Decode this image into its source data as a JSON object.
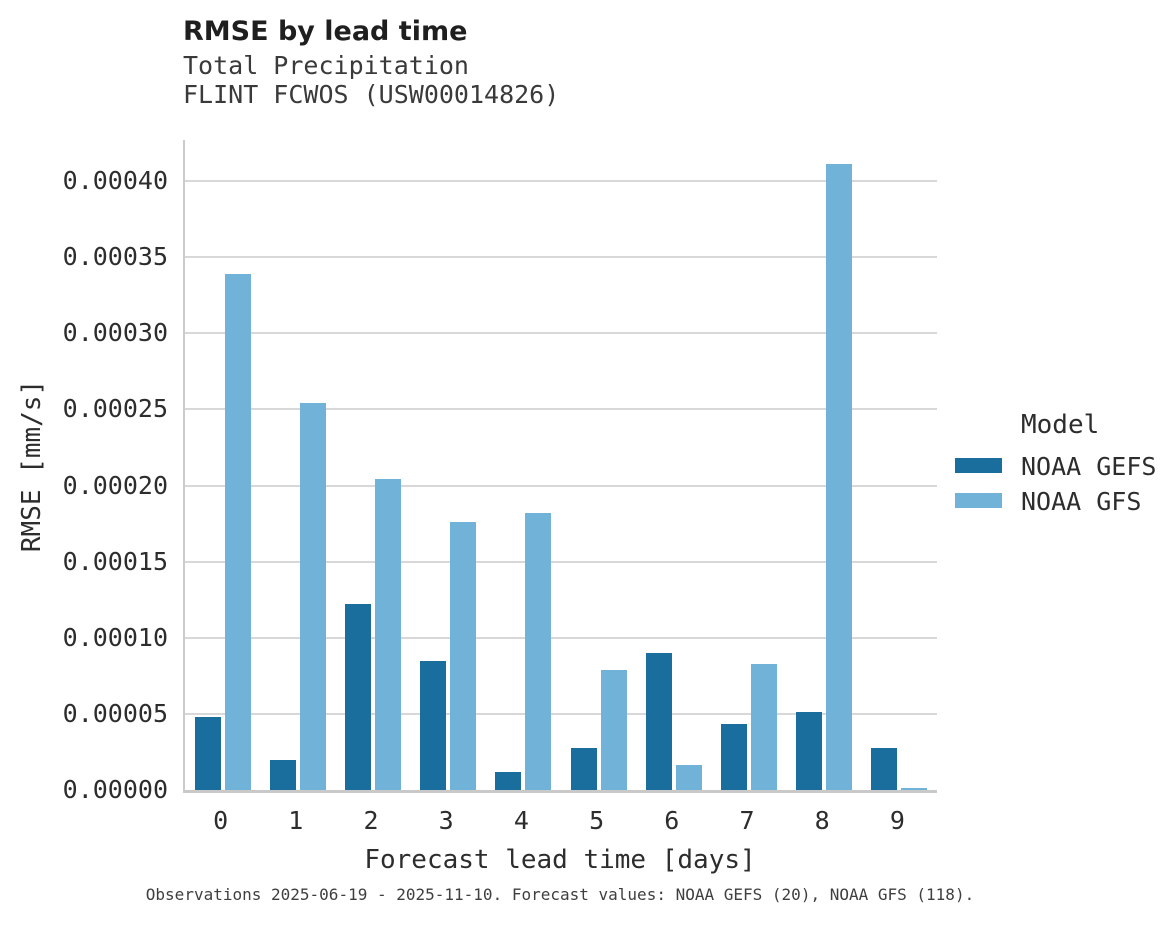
{
  "chart_data": {
    "type": "bar",
    "title": "RMSE by lead time",
    "subtitle_line1": "Total Precipitation",
    "subtitle_line2": "FLINT FCWOS (USW00014826)",
    "xlabel": "Forecast lead time [days]",
    "ylabel": "RMSE [mm/s]",
    "categories": [
      "0",
      "1",
      "2",
      "3",
      "4",
      "5",
      "6",
      "7",
      "8",
      "9"
    ],
    "series": [
      {
        "name": "NOAA GEFS",
        "color": "#1A6E9E",
        "values": [
          4.8e-05,
          1.95e-05,
          0.000122,
          8.5e-05,
          1.2e-05,
          2.75e-05,
          9e-05,
          4.35e-05,
          5.15e-05,
          2.75e-05
        ]
      },
      {
        "name": "NOAA GFS",
        "color": "#71B2D8",
        "values": [
          0.000339,
          0.000254,
          0.000204,
          0.000176,
          0.000182,
          7.9e-05,
          1.65e-05,
          8.3e-05,
          0.000411,
          1.5e-06
        ]
      }
    ],
    "ylim": [
      0,
      0.000427
    ],
    "yticks": [
      0,
      5e-05,
      0.0001,
      0.00015,
      0.0002,
      0.00025,
      0.0003,
      0.00035,
      0.0004
    ],
    "ytick_labels": [
      "0.00000",
      "0.00005",
      "0.00010",
      "0.00015",
      "0.00020",
      "0.00025",
      "0.00030",
      "0.00035",
      "0.00040"
    ],
    "grid": "horizontal",
    "legend": {
      "title": "Model",
      "position": "right"
    },
    "caption": "Observations 2025-06-19 - 2025-11-10. Forecast values: NOAA GEFS (20), NOAA GFS (118)."
  },
  "colors": {
    "gefs_bar": "#1A6E9E",
    "gfs_bar": "#71B2D8",
    "gridline": "#D8D8D8",
    "spine": "#C9C9C9",
    "title_text": "#1F1F1F",
    "axis_text": "#2D2D2D",
    "subtitle_text": "#3A3A3A",
    "caption_text": "#3F3F3F",
    "background": "#FFFFFF"
  }
}
